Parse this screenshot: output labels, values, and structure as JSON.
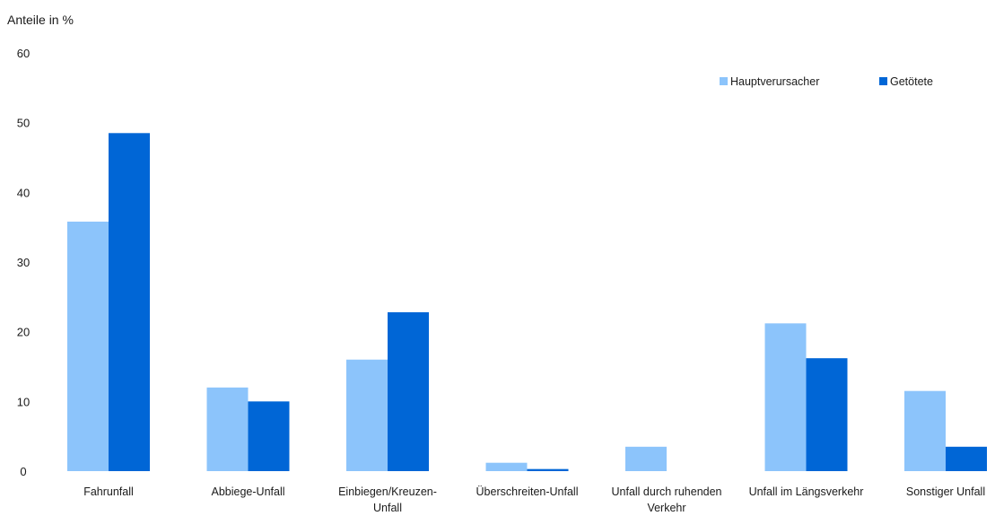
{
  "chart_data": {
    "type": "bar",
    "ylabel": "Anteile in %",
    "ylim": [
      0,
      60
    ],
    "yticks": [
      0,
      10,
      20,
      30,
      40,
      50,
      60
    ],
    "grid": false,
    "legend_position": "top-right",
    "categories": [
      [
        "Fahrunfall"
      ],
      [
        "Abbiege-Unfall"
      ],
      [
        "Einbiegen/Kreuzen-",
        "Unfall"
      ],
      [
        "Überschreiten-Unfall"
      ],
      [
        "Unfall durch ruhenden",
        "Verkehr"
      ],
      [
        "Unfall im Längsverkehr"
      ],
      [
        "Sonstiger Unfall"
      ]
    ],
    "series": [
      {
        "name": "Hauptverursacher",
        "color": "#8cc4fb",
        "values": [
          35.8,
          12.0,
          16.0,
          1.2,
          3.5,
          21.2,
          11.5
        ]
      },
      {
        "name": "Getötete",
        "color": "#0066d6",
        "values": [
          48.5,
          10.0,
          22.8,
          0.3,
          0.0,
          16.2,
          3.5
        ]
      }
    ]
  }
}
